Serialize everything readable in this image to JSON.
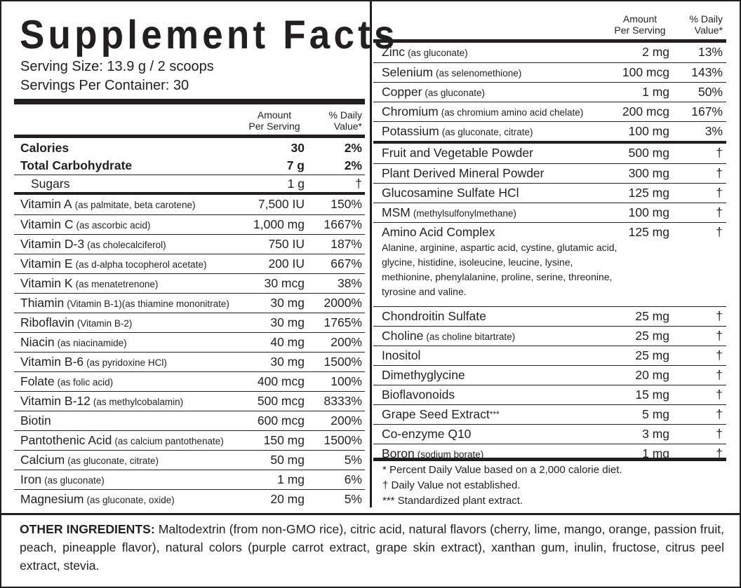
{
  "title": "Supplement Facts",
  "serving_size": "Serving Size: 13.9 g / 2 scoops",
  "servings_per_container": "Servings Per Container: 30",
  "left": {
    "header": {
      "amount": "Amount\nPer Serving",
      "dv": "% Daily\nValue*"
    },
    "sections": [
      {
        "rows": [
          {
            "name": "Calories",
            "amount": "30",
            "dv": "2%"
          },
          {
            "name": "Total Carbohydrate",
            "amount": "7 g",
            "dv": "2%"
          },
          {
            "name": "Sugars",
            "amount": "1 g",
            "dv": "†"
          }
        ]
      },
      {
        "rows": [
          {
            "name": "Vitamin A",
            "note": "(as palmitate, beta carotene)",
            "amount": "7,500 IU",
            "dv": "150%"
          },
          {
            "name": "Vitamin C",
            "note": "(as ascorbic acid)",
            "amount": "1,000 mg",
            "dv": "1667%"
          },
          {
            "name": "Vitamin D-3",
            "note": "(as cholecalciferol)",
            "amount": "750 IU",
            "dv": "187%"
          },
          {
            "name": "Vitamin E",
            "note": "(as d-alpha tocopherol acetate)",
            "amount": "200 IU",
            "dv": "667%"
          },
          {
            "name": "Vitamin K",
            "note": "(as menatetrenone)",
            "amount": "30 mcg",
            "dv": "38%"
          },
          {
            "name": "Thiamin",
            "note": "(Vitamin B-1)(as thiamine mononitrate)",
            "amount": "30 mg",
            "dv": "2000%"
          },
          {
            "name": "Riboflavin",
            "note": "(Vitamin B-2)",
            "amount": "30 mg",
            "dv": "1765%"
          },
          {
            "name": "Niacin",
            "note": "(as niacinamide)",
            "amount": "40 mg",
            "dv": "200%"
          },
          {
            "name": "Vitamin B-6",
            "note": "(as pyridoxine HCl)",
            "amount": "30 mg",
            "dv": "1500%"
          },
          {
            "name": "Folate",
            "note": "(as folic acid)",
            "amount": "400 mcg",
            "dv": "100%"
          },
          {
            "name": "Vitamin B-12",
            "note": "(as methylcobalamin)",
            "amount": "500 mcg",
            "dv": "8333%"
          },
          {
            "name": "Biotin",
            "amount": "600 mcg",
            "dv": "200%"
          },
          {
            "name": "Pantothenic Acid",
            "note": "(as calcium pantothenate)",
            "amount": "150 mg",
            "dv": "1500%"
          },
          {
            "name": "Calcium",
            "note": "(as gluconate, citrate)",
            "amount": "50 mg",
            "dv": "5%"
          },
          {
            "name": "Iron",
            "note": "(as gluconate)",
            "amount": "1 mg",
            "dv": "6%"
          },
          {
            "name": "Magnesium",
            "note": "(as gluconate, oxide)",
            "amount": "20 mg",
            "dv": "5%"
          }
        ]
      }
    ]
  },
  "right": {
    "header": {
      "amount": "Amount\nPer Serving",
      "dv": "% Daily\nValue*"
    },
    "sections": [
      {
        "rows": [
          {
            "name": "Zinc",
            "note": "(as gluconate)",
            "amount": "2 mg",
            "dv": "13%"
          },
          {
            "name": "Selenium",
            "note": "(as selenomethione)",
            "amount": "100 mcg",
            "dv": "143%"
          },
          {
            "name": "Copper",
            "note": "(as gluconate)",
            "amount": "1 mg",
            "dv": "50%"
          },
          {
            "name": "Chromium",
            "note": "(as chromium amino acid chelate)",
            "amount": "200 mcg",
            "dv": "167%"
          },
          {
            "name": "Potassium",
            "note": "(as gluconate, citrate)",
            "amount": "100 mg",
            "dv": "3%"
          }
        ]
      },
      {
        "rows": [
          {
            "name": "Fruit and Vegetable Powder",
            "amount": "500 mg",
            "dv": "†"
          },
          {
            "name": "Plant Derived Mineral Powder",
            "amount": "300 mg",
            "dv": "†"
          },
          {
            "name": "Glucosamine Sulfate HCl",
            "amount": "125 mg",
            "dv": "†"
          },
          {
            "name": "MSM",
            "note": "(methylsulfonylmethane)",
            "amount": "100 mg",
            "dv": "†"
          },
          {
            "name": "Amino Acid Complex",
            "amount": "125 mg",
            "dv": "†",
            "description": "Alanine, arginine, aspartic acid, cystine, glutamic acid, glycine, histidine, isoleucine, leucine, lysine, methionine, phenylalanine, proline, serine, threonine, tyrosine and valine."
          },
          {
            "name": "Chondroitin Sulfate",
            "amount": "25 mg",
            "dv": "†"
          },
          {
            "name": "Choline",
            "note": "(as choline bitartrate)",
            "amount": "25 mg",
            "dv": "†"
          },
          {
            "name": "Inositol",
            "amount": "25 mg",
            "dv": "†"
          },
          {
            "name": "Dimethyglycine",
            "amount": "20 mg",
            "dv": "†"
          },
          {
            "name": "Bioflavonoids",
            "amount": "15 mg",
            "dv": "†"
          },
          {
            "name": "Grape Seed Extract",
            "note": "***",
            "amount": "5 mg",
            "dv": "†"
          },
          {
            "name": "Co-enzyme Q10",
            "amount": "3 mg",
            "dv": "†"
          },
          {
            "name": "Boron",
            "note": "(sodium borate)",
            "amount": "1 mg",
            "dv": "†"
          }
        ]
      }
    ],
    "footnotes": [
      "* Percent Daily Value based on a 2,000 calorie diet.",
      "† Daily Value not established.",
      "*** Standardized plant extract."
    ]
  },
  "other_ingredients": {
    "label": "OTHER INGREDIENTS:",
    "text": "Maltodextrin (from non-GMO rice), citric acid, natural flavors (cherry, lime, mango, orange, passion fruit, peach, pineapple flavor), natural colors (purple carrot extract, grape skin extract), xanthan gum, inulin, fructose, citrus peel extract, stevia."
  }
}
